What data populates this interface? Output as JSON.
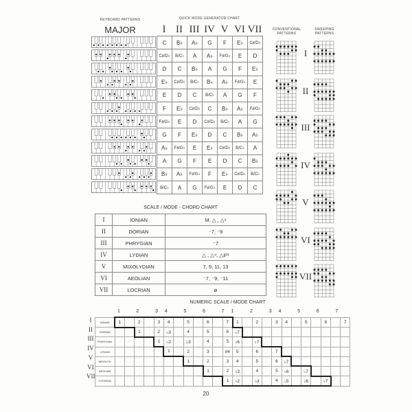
{
  "keyboard": {
    "title": "KEYBOARD PATTERNS",
    "label": "MAJOR"
  },
  "quick_mode": {
    "title": "QUICK MODE GENERATOR CHART",
    "headers": [
      "I",
      "II",
      "III",
      "IV",
      "V",
      "VI",
      "VII"
    ],
    "rows": [
      [
        "C",
        "B♭",
        "A♭",
        "G",
        "F",
        "E♭",
        "C♯/D♭"
      ],
      [
        "C♯/D♭",
        "B/C♭",
        "A",
        "A♭",
        "F♯/G♭",
        "E",
        "D"
      ],
      [
        "D",
        "C",
        "B♭",
        "A",
        "G",
        "F",
        "E♭"
      ],
      [
        "E♭",
        "C♯/D♭",
        "B/C♭",
        "B♭",
        "A♭",
        "F♯/G♭",
        "E"
      ],
      [
        "E",
        "D",
        "C",
        "B/C♭",
        "A",
        "G",
        "F"
      ],
      [
        "F",
        "E♭",
        "C♯/D♭",
        "C",
        "B♭",
        "A♭",
        "F♯/G♭"
      ],
      [
        "F♯/G♭",
        "E",
        "D",
        "C♯/D♭",
        "B/C♭",
        "A",
        "G"
      ],
      [
        "G",
        "F",
        "E♭",
        "D",
        "C",
        "B♭",
        "A♭"
      ],
      [
        "A♭",
        "F♯/G♭",
        "E",
        "E♭",
        "C♯/D♭",
        "B/C♭",
        "A"
      ],
      [
        "A",
        "G",
        "F",
        "E",
        "D",
        "C",
        "B♭"
      ],
      [
        "B♭",
        "A♭",
        "F♯/G♭",
        "F",
        "E♭",
        "C♯/D♭",
        "B/C♭"
      ],
      [
        "B/C♭",
        "A",
        "G",
        "F♯/G♭",
        "E",
        "D",
        "C"
      ]
    ]
  },
  "guitar": {
    "conventional_title": "CONVENTIONAL PATTERNS",
    "sweeping_title": "SWEEPING PATTERNS",
    "modes": [
      "I",
      "II",
      "III",
      "IV",
      "V",
      "VI",
      "VII"
    ]
  },
  "chord_chart": {
    "title": "SCALE / MODE -  CHORD CHART",
    "rows": [
      {
        "num": "I",
        "mode": "IONIAN",
        "chords": "M, △ , △⁹"
      },
      {
        "num": "II",
        "mode": "DORIAN",
        "chords": "⁻7, ⁻9"
      },
      {
        "num": "III",
        "mode": "PHRYGIAN",
        "chords": "⁻7"
      },
      {
        "num": "IV",
        "mode": "LYDIAN",
        "chords": "△ , △⁹, △♯¹¹"
      },
      {
        "num": "V",
        "mode": "MIXOLYDIAN",
        "chords": "7,  9, 11, 13"
      },
      {
        "num": "VI",
        "mode": "AEOLIAN",
        "chords": "⁻7, ⁻9, ⁻11"
      },
      {
        "num": "VII",
        "mode": "LOCRIAN",
        "chords": "ø"
      }
    ]
  },
  "numeric_chart": {
    "title": "NUMERIC SCALE / MODE CHART",
    "header": [
      "1",
      "",
      "2",
      "",
      "3",
      "4",
      "",
      "5",
      "",
      "6",
      "",
      "7",
      "1",
      "",
      "2",
      "",
      "3",
      "4",
      "",
      "5",
      "",
      "6",
      "",
      "7"
    ],
    "rows": [
      {
        "num": "I",
        "mode": "IONIAN",
        "start": 0,
        "cells": [
          "1",
          "2",
          "3",
          "4",
          "5",
          "6",
          "7",
          "1",
          "2",
          "3",
          "4",
          "5",
          "6",
          "7"
        ],
        "cols": [
          0,
          2,
          4,
          5,
          7,
          9,
          11,
          12,
          14,
          16,
          17,
          19,
          21,
          23
        ],
        "end": 11
      },
      {
        "num": "II",
        "mode": "DORIAN",
        "start": 2,
        "cells": [
          "1",
          "2",
          "♭3",
          "4",
          "5",
          "6",
          "♭7"
        ],
        "cols": [
          2,
          4,
          5,
          7,
          9,
          11,
          12
        ],
        "end": 12
      },
      {
        "num": "III",
        "mode": "PHRYGIAN",
        "start": 4,
        "cells": [
          "1",
          "♭2",
          "♭3",
          "4",
          "5",
          "♭6",
          "♭7"
        ],
        "cols": [
          4,
          5,
          7,
          9,
          11,
          12,
          14
        ],
        "end": 14
      },
      {
        "num": "IV",
        "mode": "LYDIAN",
        "start": 5,
        "cells": [
          "1",
          "2",
          "3",
          "♯4",
          "5",
          "6",
          "7"
        ],
        "cols": [
          5,
          7,
          9,
          11,
          12,
          14,
          16
        ],
        "end": 16
      },
      {
        "num": "V",
        "mode": "MIXOLYD",
        "start": 7,
        "cells": [
          "1",
          "2",
          "3",
          "4",
          "5",
          "6",
          "♭7"
        ],
        "cols": [
          7,
          9,
          11,
          12,
          14,
          16,
          17
        ],
        "end": 17
      },
      {
        "num": "VI",
        "mode": "AEOLIAN",
        "start": 9,
        "cells": [
          "1",
          "2",
          "♭3",
          "4",
          "5",
          "♭6",
          "♭7"
        ],
        "cols": [
          9,
          11,
          12,
          14,
          16,
          17,
          19
        ],
        "end": 19
      },
      {
        "num": "VII",
        "mode": "LOCRIAN",
        "start": 11,
        "cells": [
          "1",
          "♭2",
          "♭3",
          "4",
          "♭5",
          "♭6",
          "♭7"
        ],
        "cols": [
          11,
          12,
          14,
          16,
          17,
          19,
          21
        ],
        "end": 21
      }
    ]
  },
  "page_number": "20"
}
